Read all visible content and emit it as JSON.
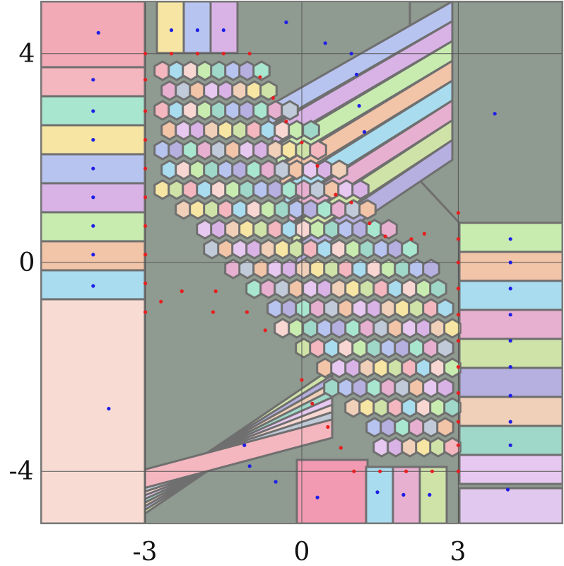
{
  "chart_data": {
    "type": "scatter",
    "title": "",
    "xlabel": "",
    "ylabel": "",
    "xlim": [
      -5,
      5
    ],
    "ylim": [
      -5,
      5
    ],
    "grid": true,
    "x_ticks": [
      -3,
      0,
      3
    ],
    "y_ticks": [
      4,
      0,
      -4
    ],
    "x_tick_labels": [
      "-3",
      "0",
      "3"
    ],
    "y_tick_labels": [
      "4",
      "0",
      "-4"
    ],
    "colors": {
      "blue_points": "#1f1fe6",
      "red_points": "#e61f1f",
      "cell_edges": "#6f6f6f",
      "grid": "#555555"
    },
    "series": [
      {
        "color": "blue",
        "points": [
          [
            -3.9,
            4.4
          ],
          [
            -4.0,
            3.5
          ],
          [
            -4.0,
            2.9
          ],
          [
            -4.0,
            2.35
          ],
          [
            -4.0,
            1.8
          ],
          [
            -4.0,
            1.25
          ],
          [
            -4.0,
            0.7
          ],
          [
            -4.0,
            0.15
          ],
          [
            -4.0,
            -0.45
          ],
          [
            -2.5,
            4.45
          ],
          [
            -2.0,
            4.45
          ],
          [
            -1.5,
            4.45
          ],
          [
            -0.3,
            4.6
          ],
          [
            0.45,
            4.2
          ],
          [
            0.95,
            4.0
          ],
          [
            1.05,
            3.6
          ],
          [
            1.1,
            3.0
          ],
          [
            1.2,
            2.5
          ],
          [
            3.7,
            2.85
          ],
          [
            4.0,
            0.45
          ],
          [
            4.0,
            0.0
          ],
          [
            4.0,
            -0.5
          ],
          [
            4.0,
            -1.0
          ],
          [
            4.0,
            -1.5
          ],
          [
            4.0,
            -2.0
          ],
          [
            4.0,
            -2.55
          ],
          [
            4.0,
            -3.05
          ],
          [
            4.0,
            -3.5
          ],
          [
            3.95,
            -4.35
          ],
          [
            1.45,
            -4.4
          ],
          [
            1.95,
            -4.45
          ],
          [
            2.45,
            -4.45
          ],
          [
            -3.7,
            -2.8
          ],
          [
            -1.1,
            -3.5
          ],
          [
            -1.0,
            -3.9
          ],
          [
            -0.5,
            -4.2
          ],
          [
            0.3,
            -4.5
          ]
        ]
      },
      {
        "color": "red",
        "points": [
          [
            -3.0,
            4.0
          ],
          [
            -2.5,
            4.0
          ],
          [
            -2.0,
            4.0
          ],
          [
            -1.5,
            4.0
          ],
          [
            -1.0,
            4.0
          ],
          [
            -3.0,
            3.5
          ],
          [
            -3.0,
            2.9
          ],
          [
            -3.0,
            2.35
          ],
          [
            -3.0,
            1.8
          ],
          [
            -3.0,
            1.25
          ],
          [
            -3.0,
            0.7
          ],
          [
            -3.0,
            0.15
          ],
          [
            -3.0,
            -0.4
          ],
          [
            -3.0,
            -0.95
          ],
          [
            -0.8,
            3.55
          ],
          [
            -0.55,
            3.15
          ],
          [
            -0.3,
            2.7
          ],
          [
            0.0,
            2.3
          ],
          [
            0.3,
            1.85
          ],
          [
            0.65,
            1.3
          ],
          [
            0.95,
            1.15
          ],
          [
            1.3,
            0.75
          ],
          [
            1.6,
            0.5
          ],
          [
            2.1,
            0.45
          ],
          [
            2.35,
            0.55
          ],
          [
            3.0,
            0.95
          ],
          [
            3.0,
            0.45
          ],
          [
            3.0,
            0.0
          ],
          [
            3.0,
            -0.5
          ],
          [
            3.0,
            -1.0
          ],
          [
            3.0,
            -1.5
          ],
          [
            3.0,
            -2.0
          ],
          [
            3.0,
            -2.5
          ],
          [
            3.0,
            -3.05
          ],
          [
            3.0,
            -3.5
          ],
          [
            3.0,
            -4.0
          ],
          [
            2.5,
            -4.0
          ],
          [
            2.0,
            -4.0
          ],
          [
            1.5,
            -4.0
          ],
          [
            1.0,
            -4.0
          ],
          [
            0.75,
            -3.55
          ],
          [
            0.5,
            -3.15
          ],
          [
            0.2,
            -2.7
          ],
          [
            0.0,
            -2.25
          ],
          [
            -2.7,
            -0.75
          ],
          [
            -2.3,
            -0.55
          ],
          [
            -1.65,
            -0.55
          ],
          [
            -1.05,
            -0.95
          ],
          [
            -0.7,
            -1.3
          ],
          [
            -1.7,
            -0.95
          ]
        ]
      }
    ]
  }
}
